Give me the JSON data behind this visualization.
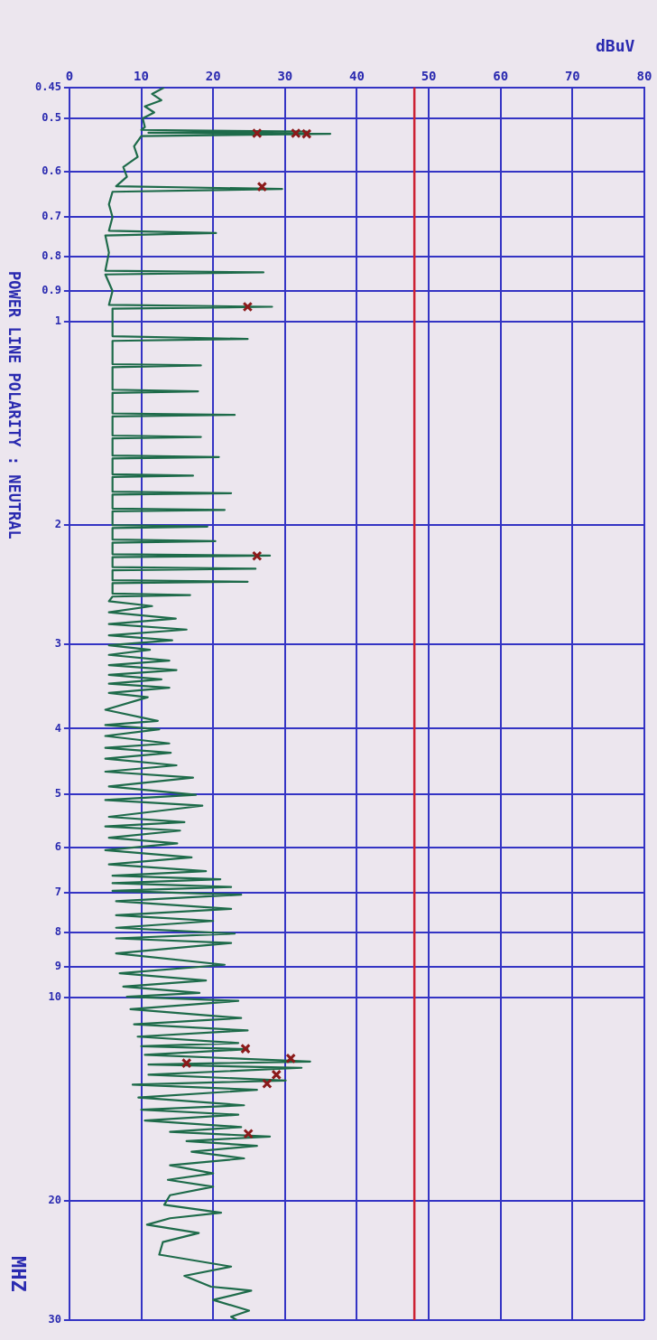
{
  "chart_data": {
    "type": "line",
    "xlabel": "dBuV",
    "ylabel": "MHZ",
    "annotations": [
      "POWER LINE POLARITY : NEUTRAL"
    ],
    "log": "y",
    "grid": true,
    "legend": false,
    "ylim": [
      30,
      0.45
    ],
    "yticks": [
      0.45,
      0.5,
      0.6,
      0.7,
      0.8,
      0.9,
      1,
      2,
      3,
      4,
      5,
      6,
      7,
      8,
      9,
      10,
      20,
      30
    ],
    "xlim": [
      0,
      80
    ],
    "xticks": [
      0,
      10,
      20,
      30,
      40,
      50,
      60,
      70,
      80
    ],
    "ref_lines": [
      {
        "axis": "x",
        "value": 48,
        "color": "#cc2233"
      }
    ],
    "series": [
      {
        "color": "#1e6b4a",
        "values": [
          0.45,
          0.46,
          0.47,
          0.48,
          0.49,
          0.5,
          0.515,
          0.52,
          0.523,
          0.525,
          0.527,
          0.531,
          0.55,
          0.57,
          0.59,
          0.61,
          0.63,
          0.636,
          0.642,
          0.67,
          0.7,
          0.733,
          0.739,
          0.745,
          0.79,
          0.84,
          0.845,
          0.851,
          0.9,
          0.944,
          0.95,
          0.956,
          1.05,
          1.06,
          1.067,
          1.155,
          1.16,
          1.167,
          1.26,
          1.267,
          1.274,
          1.366,
          1.373,
          1.38,
          1.473,
          1.48,
          1.487,
          1.577,
          1.585,
          1.593,
          1.681,
          1.689,
          1.697,
          1.784,
          1.793,
          1.802,
          1.889,
          1.898,
          1.907,
          1.999,
          2.009,
          2.019,
          2.1,
          2.111,
          2.122,
          2.207,
          2.218,
          2.229,
          2.307,
          2.319,
          2.331,
          2.412,
          2.424,
          2.436,
          2.524,
          2.537,
          2.55,
          2.59,
          2.634,
          2.69,
          2.749,
          2.8,
          2.853,
          2.91,
          2.96,
          3.01,
          3.057,
          3.11,
          3.172,
          3.22,
          3.275,
          3.33,
          3.381,
          3.43,
          3.479,
          3.54,
          3.593,
          3.75,
          3.895,
          3.95,
          4.008,
          4.1,
          4.205,
          4.27,
          4.341,
          4.43,
          4.531,
          4.63,
          4.726,
          4.87,
          5.01,
          5.1,
          5.2,
          5.4,
          5.5,
          5.58,
          5.66,
          5.8,
          5.91,
          6.05,
          6.2,
          6.35,
          6.5,
          6.6,
          6.68,
          6.77,
          6.86,
          6.95,
          7.04,
          7.2,
          7.39,
          7.55,
          7.7,
          7.88,
          8.04,
          8.17,
          8.3,
          8.6,
          8.94,
          9.2,
          9.43,
          9.63,
          9.84,
          9.97,
          10.11,
          10.4,
          10.72,
          10.95,
          11.18,
          11.42,
          11.67,
          11.8,
          11.92,
          12.15,
          12.43,
          12.56,
          12.7,
          13.0,
          13.26,
          13.45,
          13.69,
          14.05,
          14.43,
          14.65,
          14.9,
          15.2,
          15.54,
          15.8,
          16.05,
          16.3,
          16.57,
          16.9,
          17.29,
          17.7,
          18.2,
          18.6,
          19.04,
          19.6,
          20.25,
          20.81,
          21.2,
          21.67,
          22.3,
          23.0,
          24.0,
          25.0,
          25.8,
          26.77,
          27.13,
          28.0,
          29.05,
          29.65,
          30
        ],
        "x": [
          13.2,
          11.5,
          12.8,
          10.5,
          11.8,
          10.2,
          10.5,
          10,
          33.0,
          11,
          36.3,
          10,
          9,
          9.5,
          7.5,
          8,
          6.5,
          29.6,
          6,
          5.5,
          6,
          5.5,
          20.4,
          5,
          5.5,
          5,
          27.0,
          5,
          6,
          5.5,
          28.2,
          6,
          6,
          24.8,
          6,
          6,
          18.3,
          6,
          6,
          17.9,
          6,
          6,
          23.0,
          6,
          6,
          18.3,
          6,
          6,
          20.8,
          6,
          6,
          17.2,
          6,
          6,
          22.5,
          6,
          6,
          21.6,
          6,
          6,
          19.2,
          6,
          6,
          20.3,
          6,
          6,
          27.9,
          6,
          6,
          25.9,
          6,
          6,
          24.8,
          6,
          6,
          16.8,
          6,
          5.5,
          11.5,
          5.5,
          14.8,
          5.5,
          16.3,
          5.5,
          14.3,
          5.5,
          11.2,
          5.5,
          13.9,
          5.5,
          14.9,
          5.5,
          12.8,
          5.5,
          13.9,
          5.5,
          10.9,
          5,
          12.3,
          5,
          12.5,
          5,
          13.9,
          5,
          14.1,
          5,
          14.9,
          5,
          17.2,
          5.5,
          17.6,
          5,
          18.5,
          5.5,
          16,
          5,
          15.4,
          5.5,
          15.0,
          5,
          17,
          5.5,
          19.0,
          6,
          21.0,
          6,
          22.5,
          6,
          23.9,
          6.5,
          22.5,
          6.5,
          20,
          6.5,
          23.0,
          6.5,
          22.5,
          6.5,
          21.6,
          7,
          19.0,
          7.5,
          18.1,
          8,
          23.5,
          8.5,
          23.9,
          9,
          24.8,
          9.5,
          23.5,
          10,
          24.8,
          10.5,
          33.5,
          11,
          32.3,
          11,
          30.1,
          8.8,
          26.1,
          9.6,
          24.3,
          10,
          23.5,
          10.5,
          23.9,
          14,
          27.9,
          16.3,
          26.1,
          17,
          24.3,
          14,
          20,
          13.7,
          20.0,
          14,
          13.2,
          21.1,
          14,
          10.8,
          18,
          13,
          12.5,
          22.5,
          16,
          19.7,
          25.3,
          20,
          25.0,
          22.5,
          23.3
        ]
      },
      {
        "type": "scatter",
        "color": "#8b1a1a",
        "marker": "cross",
        "values": [
          0.526,
          0.526,
          0.527,
          0.631,
          0.95,
          2.22,
          11.9,
          12.3,
          12.5,
          13.0,
          13.4,
          15.9
        ],
        "x": [
          26.1,
          31.5,
          33.0,
          26.8,
          24.8,
          26.1,
          24.5,
          30.8,
          16.3,
          28.8,
          27.5,
          24.9
        ]
      }
    ]
  }
}
